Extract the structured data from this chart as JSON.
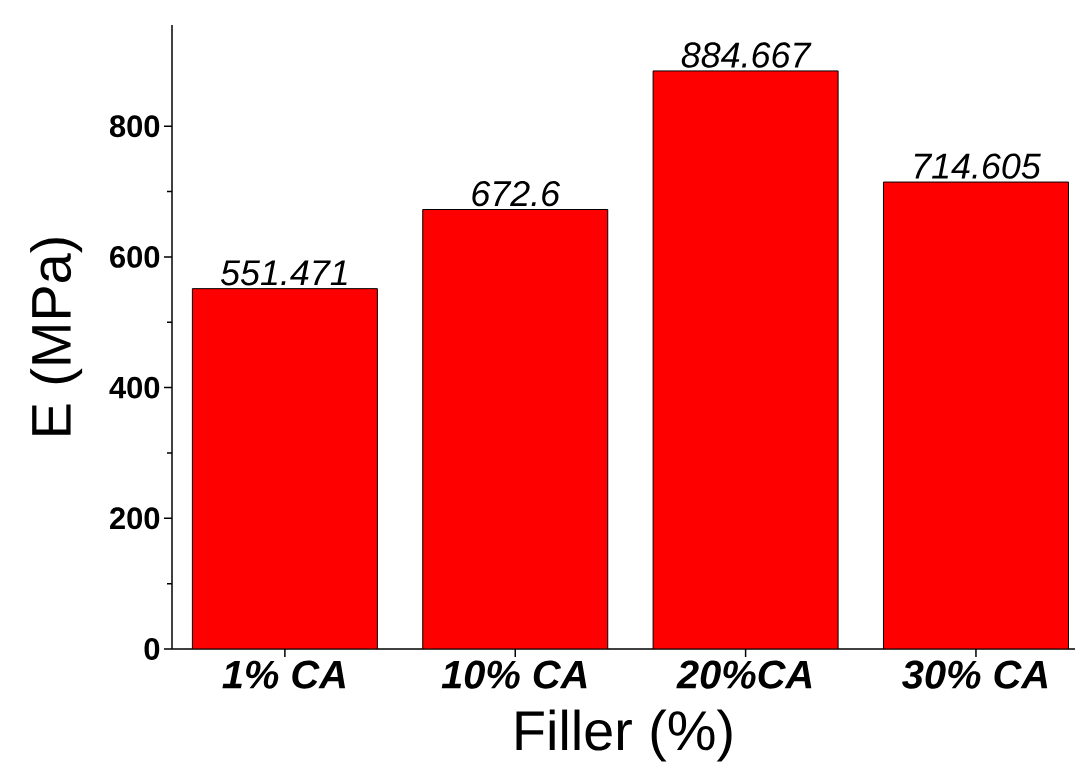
{
  "chart_data": {
    "type": "bar",
    "categories": [
      "1% CA",
      "10% CA",
      "20%CA",
      "30% CA"
    ],
    "values": [
      551.471,
      672.6,
      884.667,
      714.605
    ],
    "color": "#ff0000",
    "xlabel": "Filler (%)",
    "ylabel": "E (MPa)",
    "ylim": [
      0,
      955
    ],
    "yticks": [
      0,
      200,
      400,
      600,
      800
    ],
    "data_labels": true
  }
}
